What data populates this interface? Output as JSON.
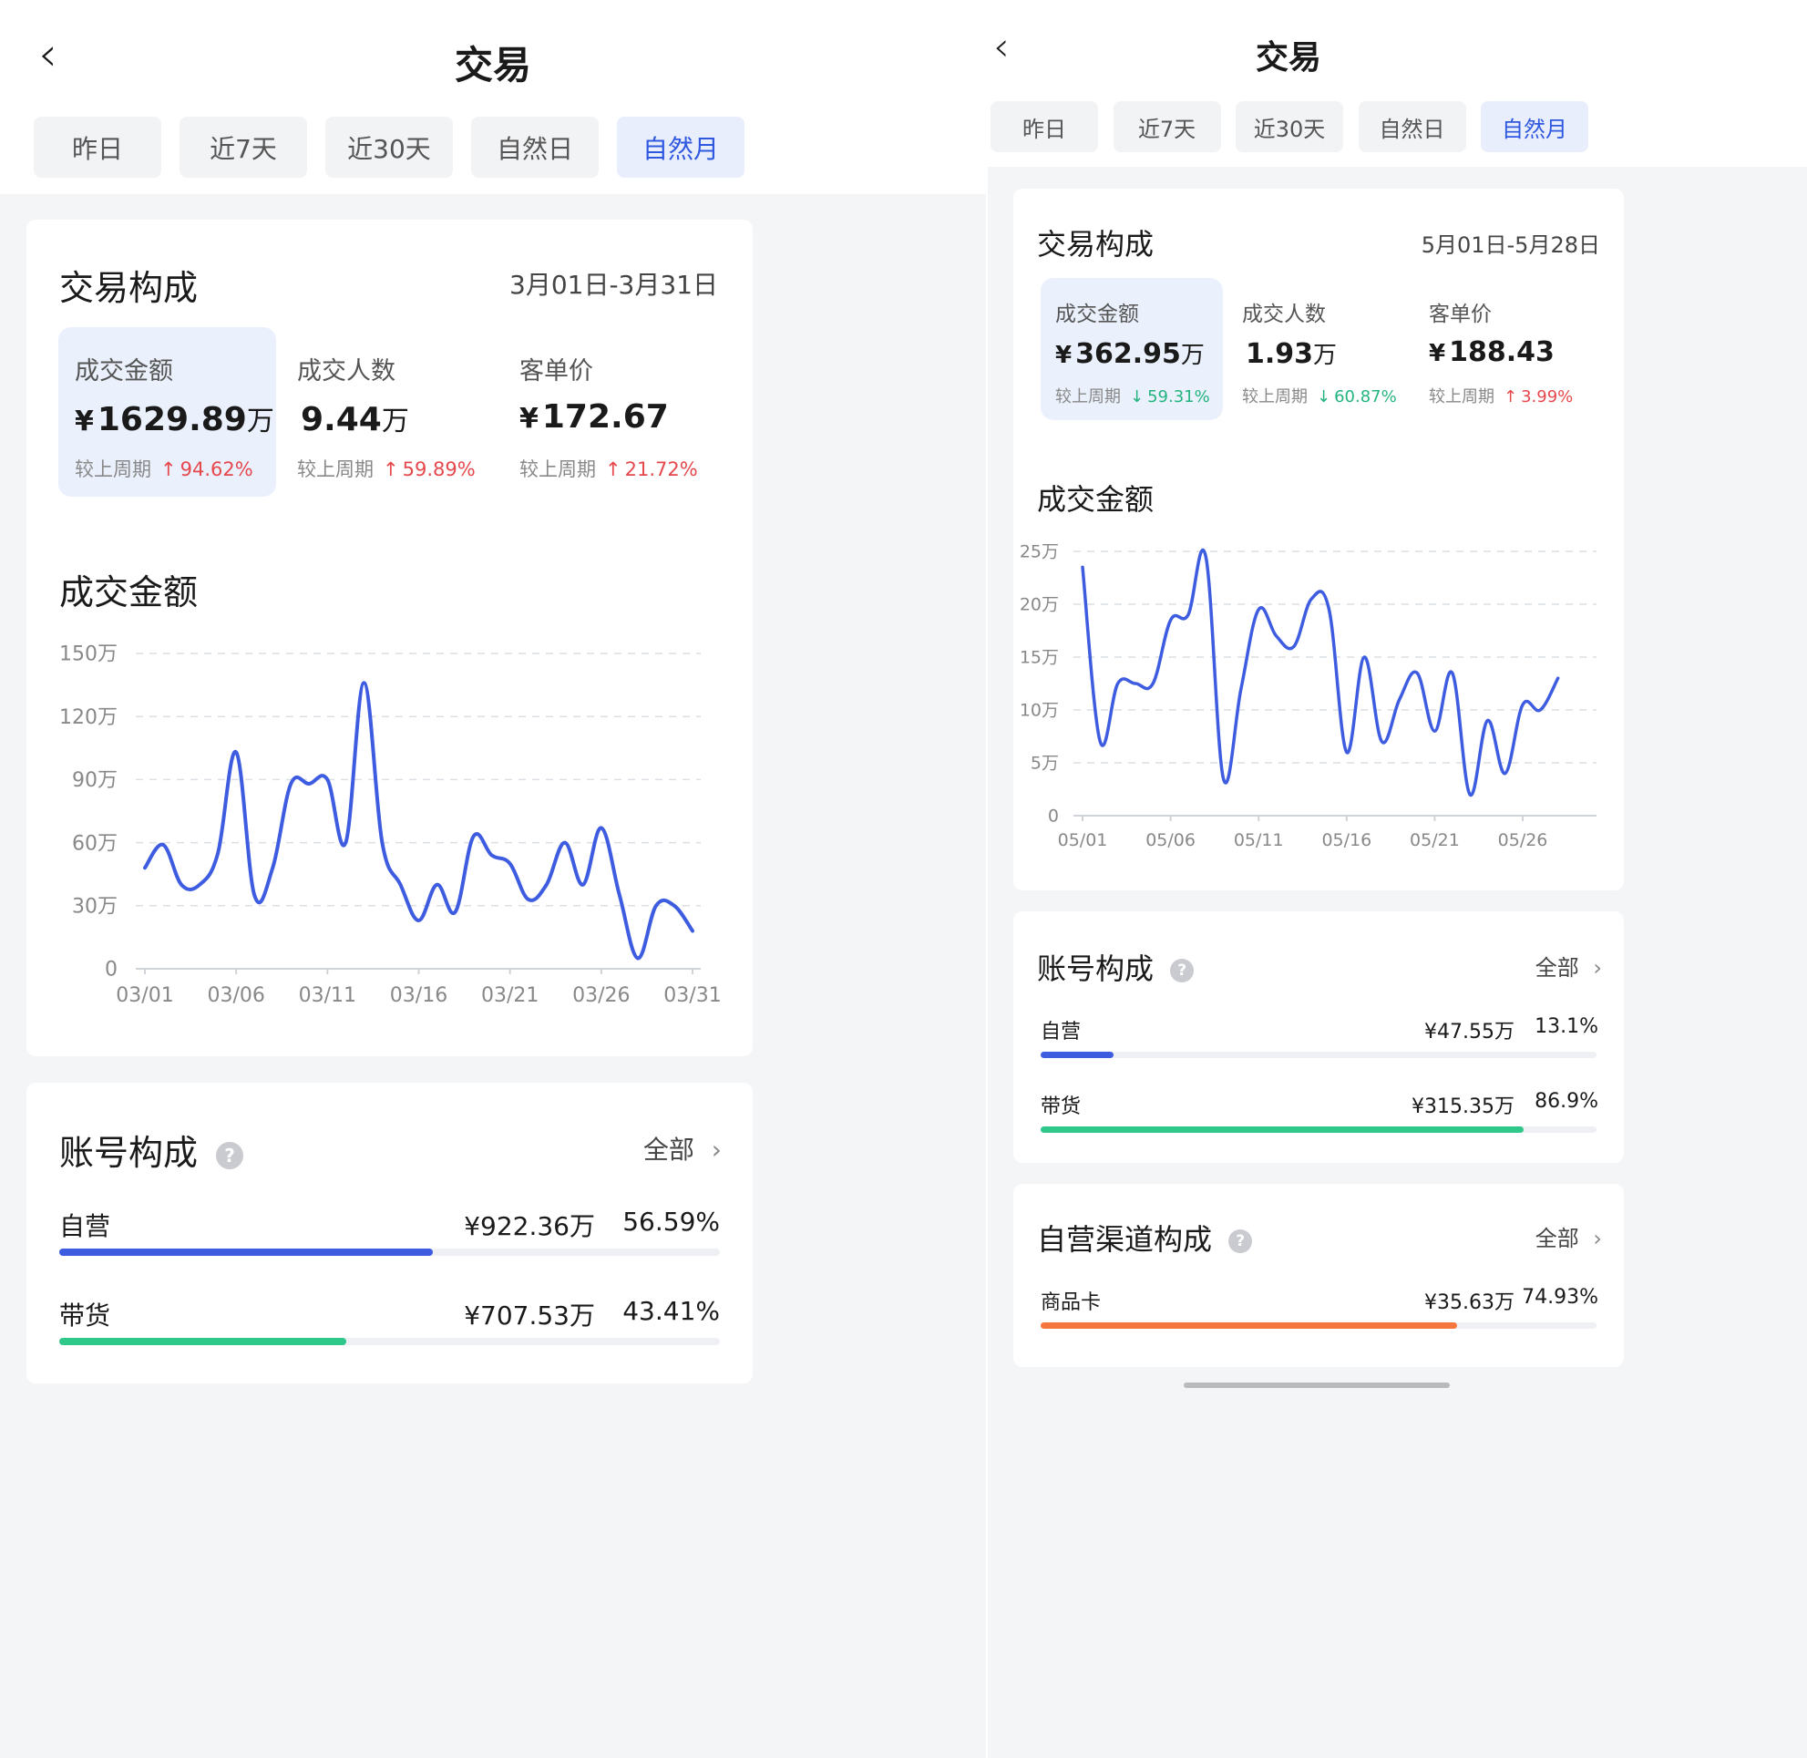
{
  "left": {
    "title": "交易",
    "tabs": [
      {
        "label": "昨日",
        "active": false
      },
      {
        "label": "近7天",
        "active": false
      },
      {
        "label": "近30天",
        "active": false
      },
      {
        "label": "自然日",
        "active": false
      },
      {
        "label": "自然月",
        "active": true
      }
    ],
    "composition": {
      "title": "交易构成",
      "date_range": "3月01日-3月31日",
      "metrics": [
        {
          "label": "成交金额",
          "currency": "¥",
          "value": "1629.89",
          "unit": "万",
          "compare_label": "较上周期",
          "trend": "up",
          "change": "94.62%",
          "selected": true
        },
        {
          "label": "成交人数",
          "currency": "",
          "value": "9.44",
          "unit": "万",
          "compare_label": "较上周期",
          "trend": "up",
          "change": "59.89%",
          "selected": false
        },
        {
          "label": "客单价",
          "currency": "¥",
          "value": "172.67",
          "unit": "",
          "compare_label": "较上周期",
          "trend": "up",
          "change": "21.72%",
          "selected": false
        }
      ],
      "chart_title": "成交金额"
    },
    "accounts": {
      "title": "账号构成",
      "help_icon": "question-circle-icon",
      "all_label": "全部",
      "rows": [
        {
          "name": "自营",
          "amount": "¥922.36万",
          "percent": "56.59%",
          "share": 0.5659,
          "color": "#3d5ce0"
        },
        {
          "name": "带货",
          "amount": "¥707.53万",
          "percent": "43.41%",
          "share": 0.4341,
          "color": "#2fc88a"
        }
      ]
    }
  },
  "right": {
    "title": "交易",
    "tabs": [
      {
        "label": "昨日",
        "active": false
      },
      {
        "label": "近7天",
        "active": false
      },
      {
        "label": "近30天",
        "active": false
      },
      {
        "label": "自然日",
        "active": false
      },
      {
        "label": "自然月",
        "active": true
      }
    ],
    "composition": {
      "title": "交易构成",
      "date_range": "5月01日-5月28日",
      "metrics": [
        {
          "label": "成交金额",
          "currency": "¥",
          "value": "362.95",
          "unit": "万",
          "compare_label": "较上周期",
          "trend": "down",
          "change": "59.31%",
          "selected": true
        },
        {
          "label": "成交人数",
          "currency": "",
          "value": "1.93",
          "unit": "万",
          "compare_label": "较上周期",
          "trend": "down",
          "change": "60.87%",
          "selected": false
        },
        {
          "label": "客单价",
          "currency": "¥",
          "value": "188.43",
          "unit": "",
          "compare_label": "较上周期",
          "trend": "up",
          "change": "3.99%",
          "selected": false
        }
      ],
      "chart_title": "成交金额"
    },
    "accounts": {
      "title": "账号构成",
      "help_icon": "question-circle-icon",
      "all_label": "全部",
      "rows": [
        {
          "name": "自营",
          "amount": "¥47.55万",
          "percent": "13.1%",
          "share": 0.131,
          "color": "#3d5ce0"
        },
        {
          "name": "带货",
          "amount": "¥315.35万",
          "percent": "86.9%",
          "share": 0.869,
          "color": "#2fc88a"
        }
      ]
    },
    "channels": {
      "title": "自营渠道构成",
      "help_icon": "question-circle-icon",
      "all_label": "全部",
      "rows": [
        {
          "name": "商品卡",
          "amount": "¥35.63万",
          "percent": "74.93%",
          "share": 0.7493,
          "color": "#f5773d"
        }
      ]
    }
  },
  "colors": {
    "accent": "#2f58e0",
    "line": "#3d5ce0",
    "up": "#e5484d",
    "down": "#24b47e"
  },
  "chart_data": [
    {
      "type": "line",
      "title": "成交金额",
      "xlabel": "",
      "ylabel": "",
      "x_ticks": [
        "03/01",
        "03/06",
        "03/11",
        "03/16",
        "03/21",
        "03/26",
        "03/31"
      ],
      "y_ticks": [
        "0",
        "30万",
        "60万",
        "90万",
        "120万",
        "150万"
      ],
      "ylim": [
        0,
        150
      ],
      "grid": true,
      "series": [
        {
          "values": [
            48,
            59,
            40,
            40,
            55,
            103,
            35,
            48,
            88,
            88,
            90,
            60,
            136,
            60,
            40,
            23,
            40,
            27,
            63,
            54,
            50,
            33,
            40,
            60,
            40,
            67,
            35,
            5,
            30,
            30,
            18
          ]
        }
      ]
    },
    {
      "type": "line",
      "title": "成交金额",
      "xlabel": "",
      "ylabel": "",
      "x_ticks": [
        "05/01",
        "05/06",
        "05/11",
        "05/16",
        "05/21",
        "05/26"
      ],
      "y_ticks": [
        "0",
        "5万",
        "10万",
        "15万",
        "20万",
        "25万"
      ],
      "ylim": [
        0,
        25
      ],
      "grid": true,
      "series": [
        {
          "values": [
            23.5,
            7,
            12.5,
            12.5,
            12.5,
            18.5,
            19,
            24.5,
            3.5,
            12,
            19.5,
            17,
            16,
            20.5,
            19.5,
            6,
            15,
            7,
            11,
            13.5,
            8,
            13.5,
            2,
            9,
            4,
            10.5,
            10,
            13
          ]
        }
      ]
    }
  ]
}
